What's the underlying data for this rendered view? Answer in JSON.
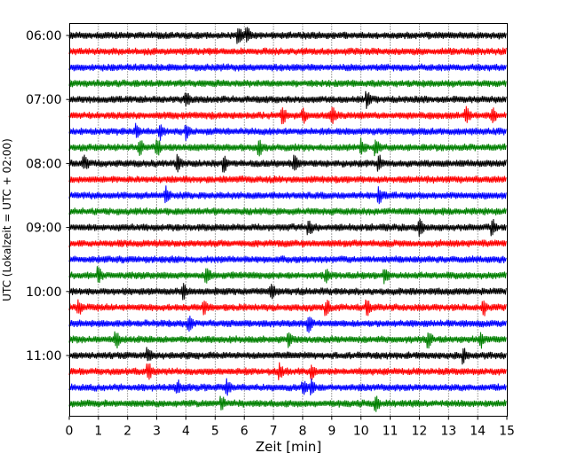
{
  "chart_data": {
    "type": "line",
    "title": "",
    "xlabel": "Zeit  [min]",
    "ylabel": "UTC (Lokalzeit = UTC + 02:00)",
    "xlim": [
      0,
      15
    ],
    "x_ticks": [
      "0",
      "1",
      "2",
      "3",
      "4",
      "5",
      "6",
      "7",
      "8",
      "9",
      "10",
      "11",
      "12",
      "13",
      "14",
      "15"
    ],
    "y_ticks": [
      "06:00",
      "07:00",
      "08:00",
      "09:00",
      "10:00",
      "11:00"
    ],
    "grid": "vertical dotted",
    "trace_colors": [
      "#000000",
      "#ff0000",
      "#0000ff",
      "#008000"
    ],
    "traces": [
      {
        "start": "06:00",
        "events": [
          5.8,
          6.1
        ]
      },
      {
        "start": "06:15",
        "events": []
      },
      {
        "start": "06:30",
        "events": []
      },
      {
        "start": "06:45",
        "events": []
      },
      {
        "start": "07:00",
        "events": [
          4.0,
          10.2
        ]
      },
      {
        "start": "07:15",
        "events": [
          7.3,
          8.0,
          9.0,
          13.6,
          14.5
        ]
      },
      {
        "start": "07:30",
        "events": [
          2.3,
          3.1,
          4.0
        ]
      },
      {
        "start": "07:45",
        "events": [
          2.4,
          3.0,
          6.5,
          10.0,
          10.5
        ]
      },
      {
        "start": "08:00",
        "events": [
          0.5,
          3.7,
          5.3,
          7.7,
          10.6
        ]
      },
      {
        "start": "08:15",
        "events": []
      },
      {
        "start": "08:30",
        "events": [
          3.3,
          10.6
        ]
      },
      {
        "start": "08:45",
        "events": []
      },
      {
        "start": "09:00",
        "events": [
          8.2,
          12.0,
          14.5
        ]
      },
      {
        "start": "09:15",
        "events": []
      },
      {
        "start": "09:30",
        "events": []
      },
      {
        "start": "09:45",
        "events": [
          1.0,
          4.7,
          8.8,
          10.8
        ]
      },
      {
        "start": "10:00",
        "events": [
          3.9,
          6.9
        ]
      },
      {
        "start": "10:15",
        "events": [
          0.3,
          4.6,
          8.8,
          10.2,
          14.2
        ]
      },
      {
        "start": "10:30",
        "events": [
          4.1,
          8.2
        ]
      },
      {
        "start": "10:45",
        "events": [
          1.6,
          7.5,
          12.3,
          14.1
        ]
      },
      {
        "start": "11:00",
        "events": [
          2.7,
          13.5
        ]
      },
      {
        "start": "11:15",
        "events": [
          2.7,
          7.2,
          8.3
        ]
      },
      {
        "start": "11:30",
        "events": [
          3.7,
          5.4,
          8.0,
          8.3
        ]
      },
      {
        "start": "11:45",
        "events": [
          5.2,
          10.5
        ]
      }
    ]
  }
}
